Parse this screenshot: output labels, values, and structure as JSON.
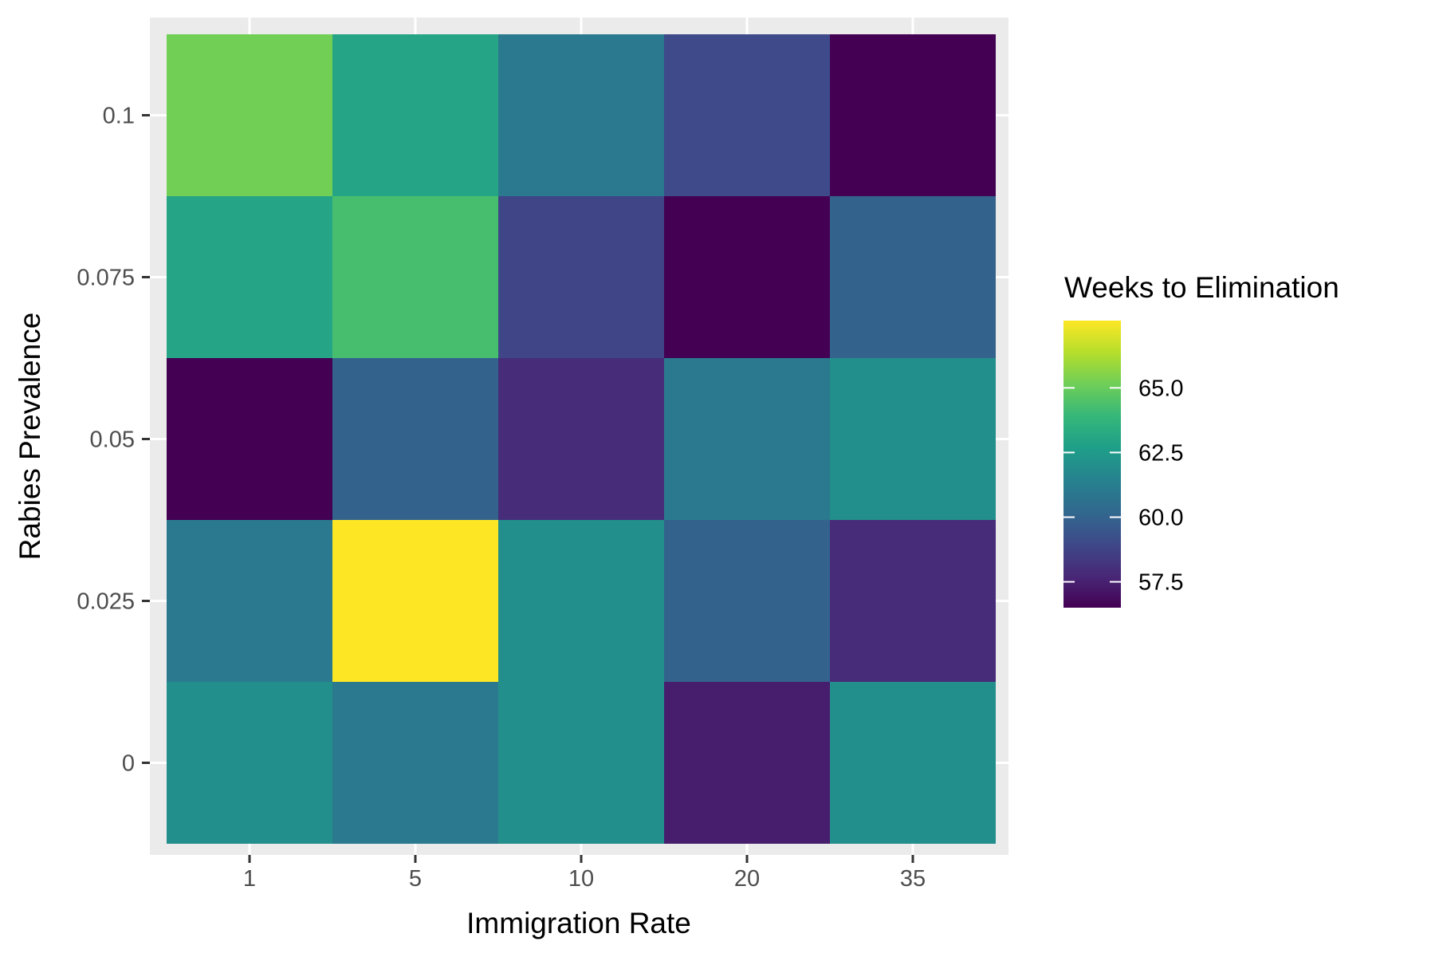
{
  "chart_data": {
    "type": "heatmap",
    "title": "",
    "xlabel": "Immigration Rate",
    "ylabel": "Rabies Prevalence",
    "x_categories": [
      "1",
      "5",
      "10",
      "20",
      "35"
    ],
    "y_categories": [
      "0",
      "0.025",
      "0.05",
      "0.075",
      "0.1"
    ],
    "rows": [
      {
        "y": "0.1",
        "values": [
          65.2,
          63.0,
          61.0,
          59.0,
          56.5
        ]
      },
      {
        "y": "0.075",
        "values": [
          63.0,
          64.3,
          58.8,
          56.5,
          60.0
        ]
      },
      {
        "y": "0.05",
        "values": [
          56.5,
          60.0,
          57.9,
          61.0,
          62.0
        ]
      },
      {
        "y": "0.025",
        "values": [
          61.0,
          67.6,
          62.0,
          60.0,
          57.9
        ]
      },
      {
        "y": "0",
        "values": [
          62.0,
          61.0,
          62.0,
          57.4,
          62.0
        ]
      }
    ],
    "legend": {
      "title": "Weeks to Elimination",
      "position": "right",
      "range": [
        56.5,
        67.6
      ],
      "breaks": [
        {
          "value": 57.5,
          "label": "57.5"
        },
        {
          "value": 60.0,
          "label": "60.0"
        },
        {
          "value": 62.5,
          "label": "62.5"
        },
        {
          "value": 65.0,
          "label": "65.0"
        }
      ]
    },
    "grid": true,
    "palette": [
      "#440154",
      "#482878",
      "#3e4989",
      "#31688e",
      "#26828e",
      "#1f9e89",
      "#35b779",
      "#6ece58",
      "#b5de2b",
      "#fde725"
    ],
    "panel_background": "#ebebeb"
  }
}
